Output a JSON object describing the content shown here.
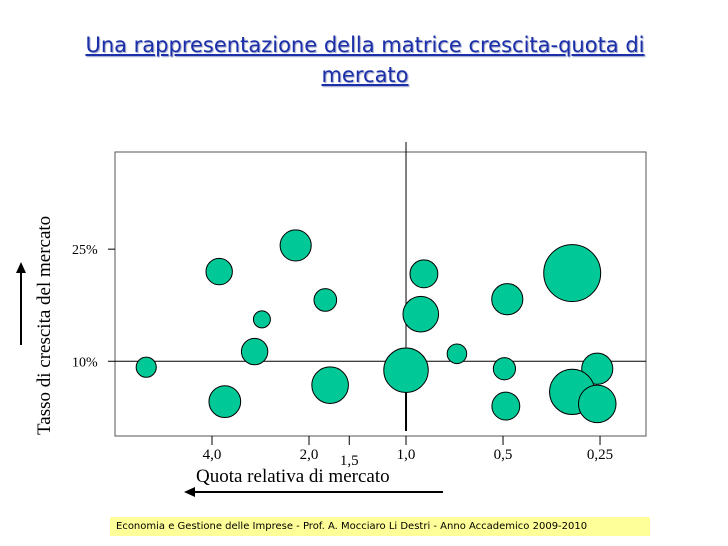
{
  "title": "Una rappresentazione della matrice crescita-quota di mercato",
  "footer": "Economia e Gestione delle Imprese - Prof. A. Mocciaro Li Destri - Anno Accademico 2009-2010",
  "colors": {
    "bubble": "#00c896",
    "title": "#1a2fa8",
    "footer_bg": "#ffff99"
  },
  "chart_data": {
    "type": "scatter",
    "title": "Una rappresentazione della matrice crescita-quota di mercato",
    "xlabel": "Quota relativa di mercato",
    "ylabel": "Tasso di crescita del mercato",
    "x_scale": "log",
    "x_reversed": true,
    "xlim": [
      8.0,
      0.18
    ],
    "ylim": [
      0,
      38
    ],
    "x_ticks": [
      {
        "value": 4.0,
        "label": "4,0"
      },
      {
        "value": 2.0,
        "label": "2,0"
      },
      {
        "value": 1.5,
        "label": "1,5"
      },
      {
        "value": 1.0,
        "label": "1,0"
      },
      {
        "value": 0.5,
        "label": "0,5"
      },
      {
        "value": 0.25,
        "label": "0,25"
      }
    ],
    "y_ticks": [
      {
        "value": 25,
        "label": "25%"
      },
      {
        "value": 10,
        "label": "10%"
      }
    ],
    "dividers": {
      "x": 1.0,
      "y": 10
    },
    "grid": false,
    "bubbles": [
      {
        "x": 3.8,
        "y": 22.0,
        "size": 1.3
      },
      {
        "x": 2.2,
        "y": 25.5,
        "size": 2.0
      },
      {
        "x": 2.8,
        "y": 15.6,
        "size": 0.35
      },
      {
        "x": 1.78,
        "y": 18.2,
        "size": 0.85
      },
      {
        "x": 6.4,
        "y": 9.2,
        "size": 0.6
      },
      {
        "x": 2.95,
        "y": 11.3,
        "size": 1.3
      },
      {
        "x": 3.65,
        "y": 4.6,
        "size": 2.1
      },
      {
        "x": 1.72,
        "y": 6.8,
        "size": 3.0
      },
      {
        "x": 0.88,
        "y": 21.7,
        "size": 1.5
      },
      {
        "x": 0.485,
        "y": 18.3,
        "size": 2.0
      },
      {
        "x": 0.305,
        "y": 21.8,
        "size": 8.5
      },
      {
        "x": 0.9,
        "y": 16.3,
        "size": 2.8
      },
      {
        "x": 1.0,
        "y": 8.8,
        "size": 4.8
      },
      {
        "x": 0.695,
        "y": 11.0,
        "size": 0.55
      },
      {
        "x": 0.495,
        "y": 9.0,
        "size": 0.8
      },
      {
        "x": 0.255,
        "y": 9.0,
        "size": 2.0
      },
      {
        "x": 0.49,
        "y": 4.0,
        "size": 1.5
      },
      {
        "x": 0.305,
        "y": 5.9,
        "size": 5.0
      },
      {
        "x": 0.255,
        "y": 4.3,
        "size": 3.2
      }
    ]
  }
}
